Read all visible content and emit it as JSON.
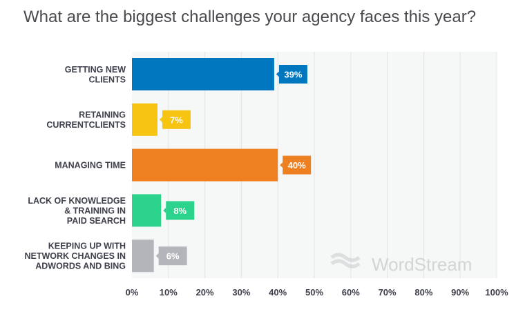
{
  "chart_data": {
    "type": "bar",
    "orientation": "horizontal",
    "title": "What are the biggest challenges your agency faces this year?",
    "categories": [
      [
        "GETTING NEW",
        "CLIENTS"
      ],
      [
        "RETAINING",
        "CURRENTCLIENTS"
      ],
      [
        "MANAGING TIME"
      ],
      [
        "LACK OF KNOWLEDGE",
        "& TRAINING IN",
        "PAID SEARCH"
      ],
      [
        "KEEPING UP WITH",
        "NETWORK CHANGES IN",
        "ADWORDS AND BING"
      ]
    ],
    "values": [
      39,
      7,
      40,
      8,
      6
    ],
    "data_labels": [
      "39%",
      "7%",
      "40%",
      "8%",
      "6%"
    ],
    "colors": [
      "#0077be",
      "#f7c511",
      "#ef8022",
      "#2bd38c",
      "#b4b5ba"
    ],
    "xlim": [
      0,
      100
    ],
    "xticks": [
      "0%",
      "10%",
      "20%",
      "30%",
      "40%",
      "50%",
      "60%",
      "70%",
      "80%",
      "90%",
      "100%"
    ],
    "grid": true,
    "xlabel": "",
    "ylabel": ""
  },
  "watermark": "WordStream"
}
